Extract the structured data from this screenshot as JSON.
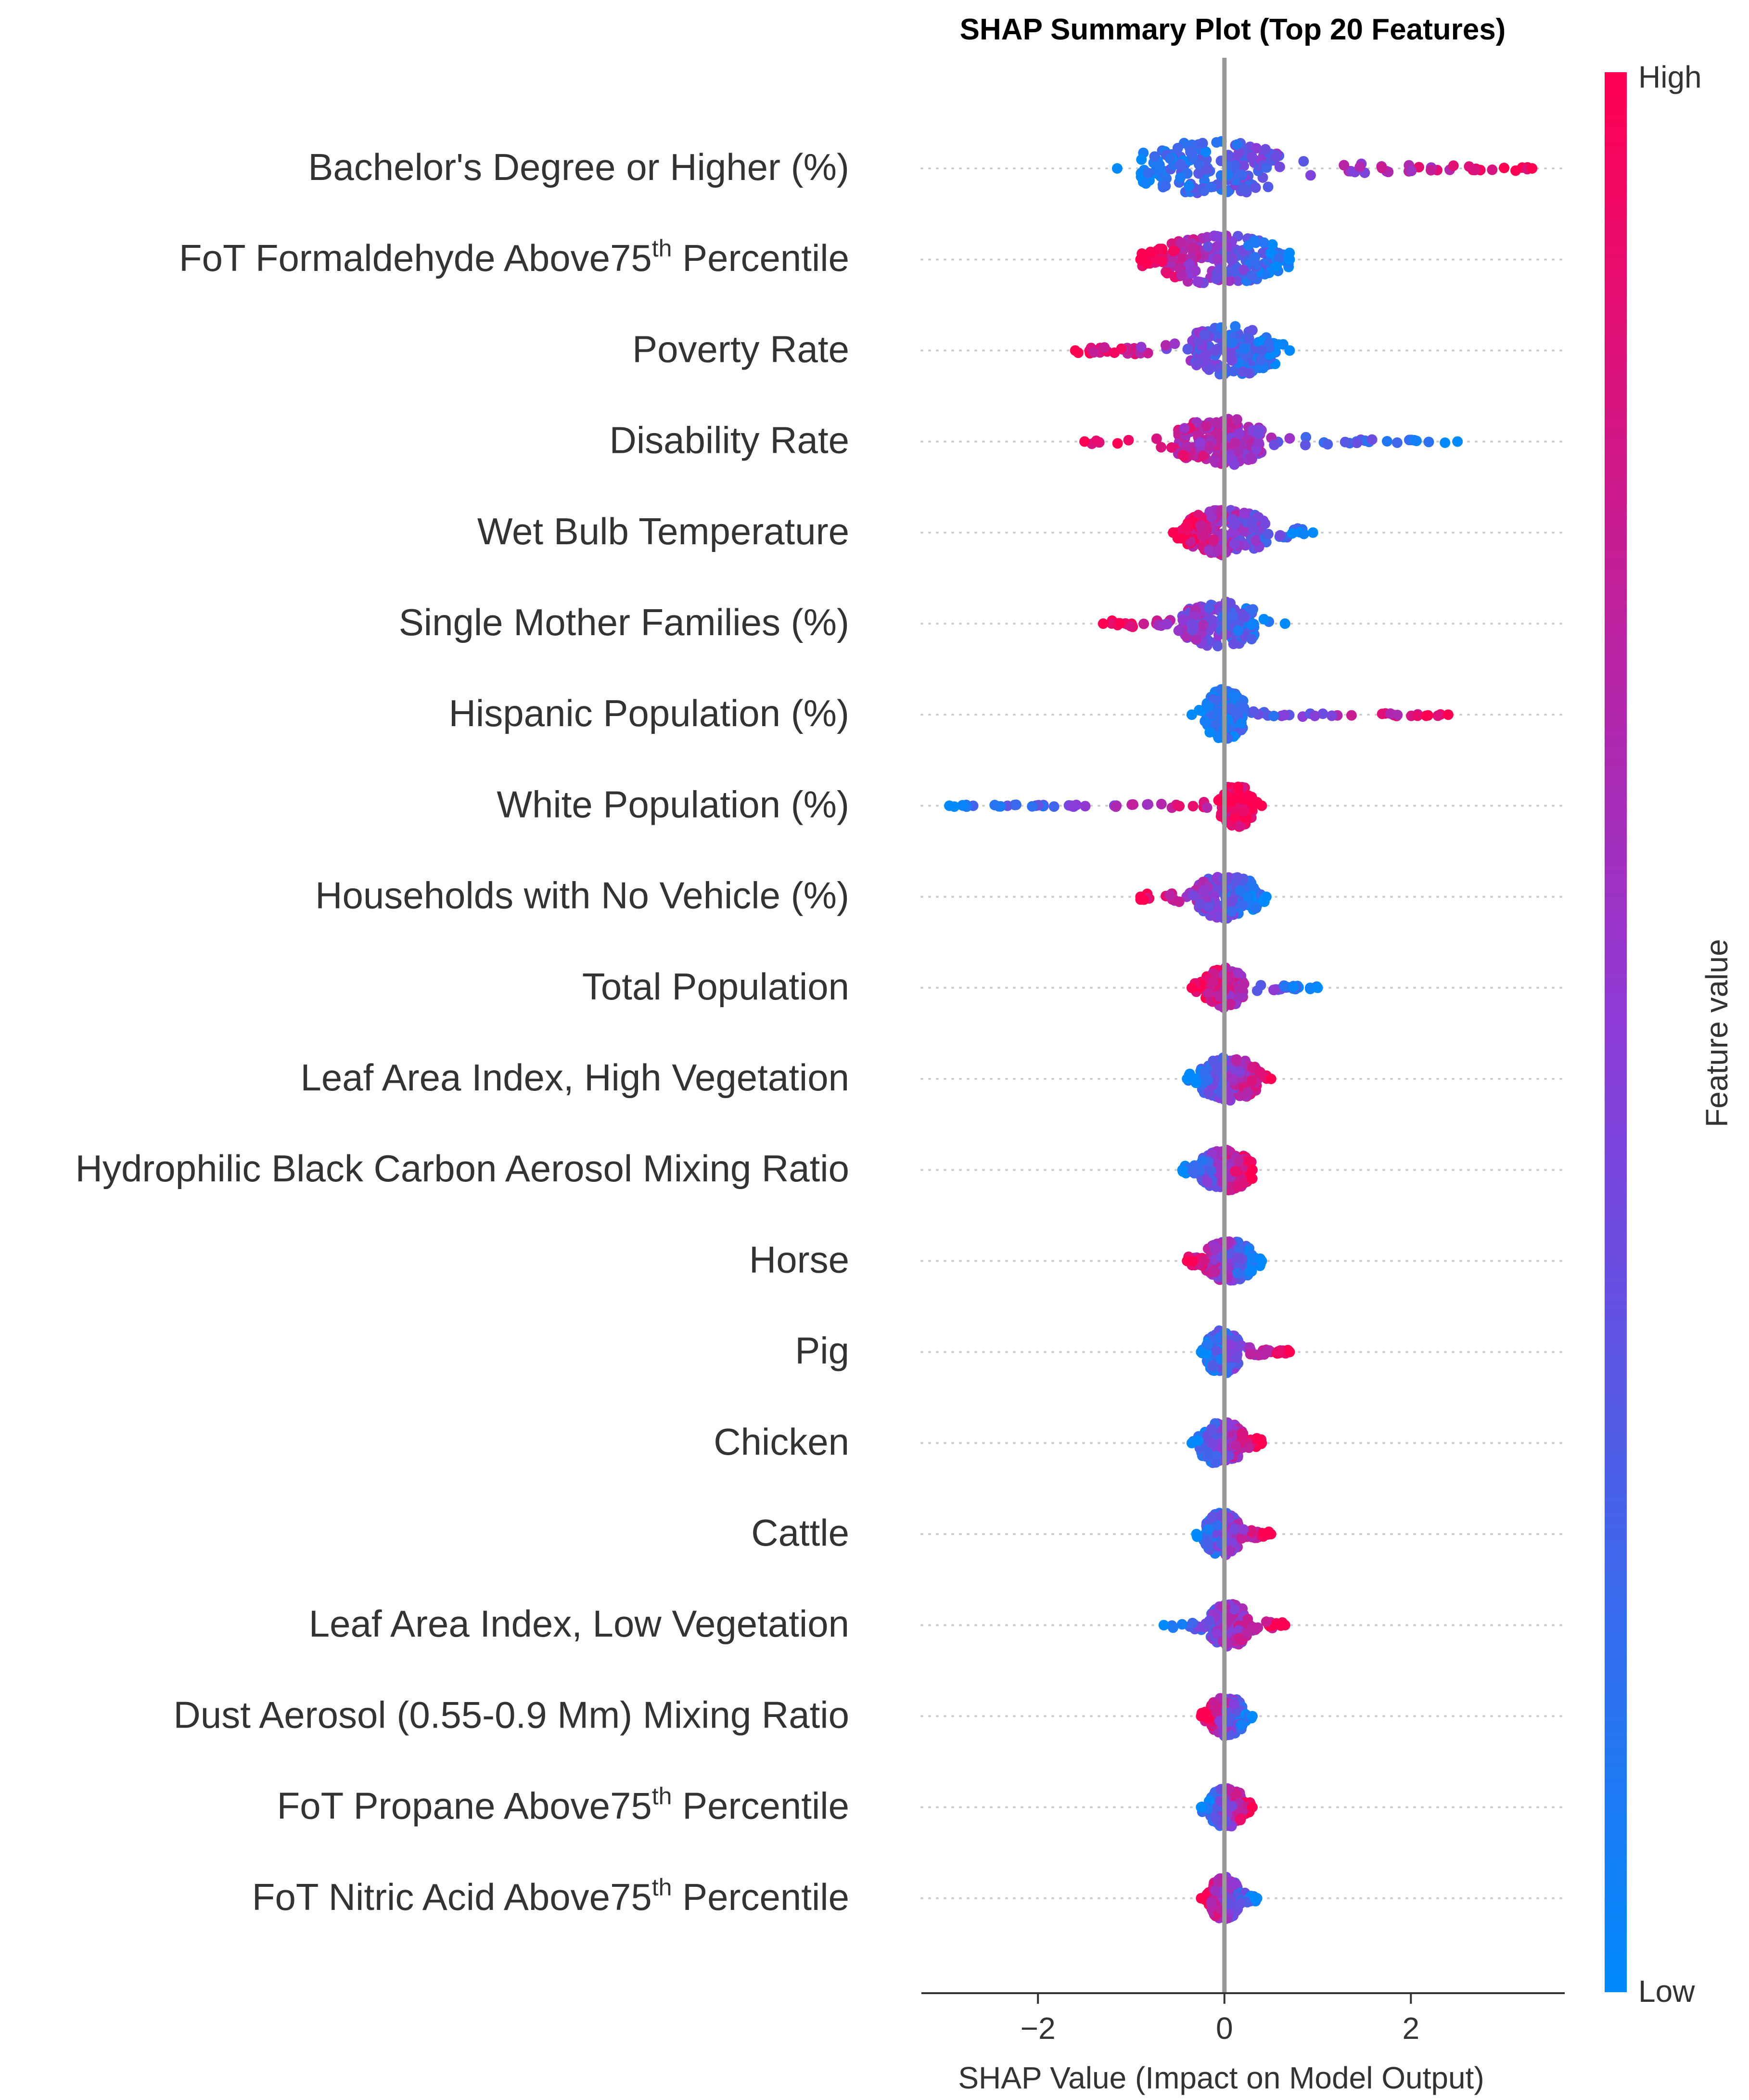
{
  "chart_data": {
    "type": "scatter",
    "subtype": "shap-beeswarm",
    "title": "SHAP Summary Plot (Top 20 Features)",
    "xlabel": "SHAP Value (Impact on Model Output)",
    "xlim": [
      -3.25,
      3.65
    ],
    "xticks": [
      {
        "value": -2,
        "label": "−2"
      },
      {
        "value": 0,
        "label": "0"
      },
      {
        "value": 2,
        "label": "2"
      }
    ],
    "zero_line": true,
    "grid": false,
    "colorbar": {
      "label": "Feature value",
      "high_label": "High",
      "low_label": "Low",
      "low_color": "#008afb",
      "mid_color": "#8c3bd8",
      "high_color": "#ff0052"
    },
    "features": [
      {
        "name": "Bachelor's Degree or Higher (%)",
        "min": -1.15,
        "max": 3.3,
        "core": [
          -0.9,
          0.6
        ],
        "width": 0.95,
        "trend": 1
      },
      {
        "name": "FoT Formaldehyde Above75th Percentile",
        "name_main": "FoT Formaldehyde Above75",
        "name_sup": "th",
        "name_tail": " Percentile",
        "min": -0.9,
        "max": 0.7,
        "core": [
          -0.75,
          0.6
        ],
        "width": 0.85,
        "trend": -1
      },
      {
        "name": "Poverty Rate",
        "min": -1.6,
        "max": 0.7,
        "core": [
          -0.4,
          0.55
        ],
        "width": 0.85,
        "trend": -1
      },
      {
        "name": "Disability Rate",
        "min": -1.5,
        "max": 2.5,
        "core": [
          -0.5,
          0.4
        ],
        "width": 0.85,
        "trend": -1
      },
      {
        "name": "Wet Bulb Temperature",
        "min": -0.55,
        "max": 0.95,
        "core": [
          -0.4,
          0.45
        ],
        "width": 0.8,
        "trend": -1
      },
      {
        "name": "Single Mother Families (%)",
        "min": -1.3,
        "max": 0.65,
        "core": [
          -0.45,
          0.35
        ],
        "width": 0.8,
        "trend": -1
      },
      {
        "name": "Hispanic Population (%)",
        "min": -0.35,
        "max": 2.4,
        "core": [
          -0.2,
          0.2
        ],
        "width": 0.9,
        "trend": 1
      },
      {
        "name": "White Population (%)",
        "min": -2.95,
        "max": 0.4,
        "core": [
          -0.05,
          0.3
        ],
        "width": 0.75,
        "trend": 1
      },
      {
        "name": "Households with No Vehicle (%)",
        "min": -0.9,
        "max": 0.45,
        "core": [
          -0.3,
          0.35
        ],
        "width": 0.75,
        "trend": -1
      },
      {
        "name": "Total Population",
        "min": -0.35,
        "max": 1.0,
        "core": [
          -0.2,
          0.2
        ],
        "width": 0.7,
        "trend": -1
      },
      {
        "name": "Leaf Area Index, High Vegetation",
        "min": -0.4,
        "max": 0.5,
        "core": [
          -0.25,
          0.35
        ],
        "width": 0.75,
        "trend": 1
      },
      {
        "name": "Hydrophilic Black Carbon Aerosol Mixing Ratio",
        "min": -0.45,
        "max": 0.3,
        "core": [
          -0.25,
          0.3
        ],
        "width": 0.7,
        "trend": 1
      },
      {
        "name": "Horse",
        "min": -0.4,
        "max": 0.4,
        "core": [
          -0.2,
          0.3
        ],
        "width": 0.7,
        "trend": -1
      },
      {
        "name": "Pig",
        "min": -0.25,
        "max": 0.7,
        "core": [
          -0.2,
          0.15
        ],
        "width": 0.75,
        "trend": 1
      },
      {
        "name": "Chicken",
        "min": -0.35,
        "max": 0.4,
        "core": [
          -0.25,
          0.2
        ],
        "width": 0.75,
        "trend": 1
      },
      {
        "name": "Cattle",
        "min": -0.3,
        "max": 0.5,
        "core": [
          -0.2,
          0.15
        ],
        "width": 0.75,
        "trend": 1
      },
      {
        "name": "Leaf Area Index, Low Vegetation",
        "min": -0.65,
        "max": 0.65,
        "core": [
          -0.15,
          0.25
        ],
        "width": 0.75,
        "trend": 1
      },
      {
        "name": "Dust Aerosol (0.55-0.9 Mm) Mixing Ratio",
        "min": -0.25,
        "max": 0.3,
        "core": [
          -0.15,
          0.2
        ],
        "width": 0.7,
        "trend": -1
      },
      {
        "name": "FoT Propane Above75th Percentile",
        "name_main": "FoT Propane Above75",
        "name_sup": "th",
        "name_tail": " Percentile",
        "min": -0.25,
        "max": 0.3,
        "core": [
          -0.15,
          0.2
        ],
        "width": 0.7,
        "trend": 1
      },
      {
        "name": "FoT Nitric Acid Above75th Percentile",
        "name_main": "FoT Nitric Acid Above75",
        "name_sup": "th",
        "name_tail": " Percentile",
        "min": -0.25,
        "max": 0.35,
        "core": [
          -0.15,
          0.15
        ],
        "width": 0.75,
        "trend": -1
      }
    ]
  }
}
